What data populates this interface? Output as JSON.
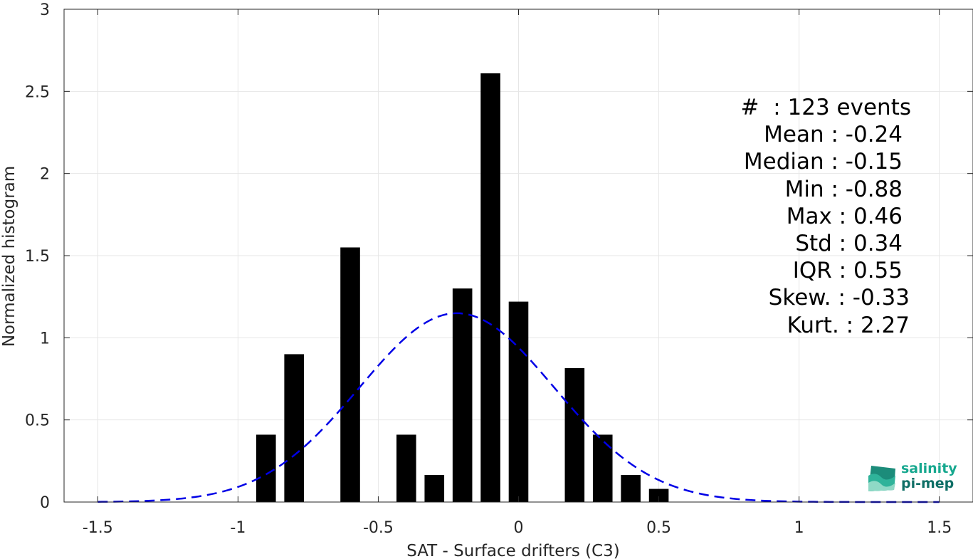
{
  "chart_data": {
    "type": "bar",
    "xlabel": "SAT - Surface drifters (C3)",
    "ylabel": "Normalized histogram",
    "xlim": [
      -1.62,
      1.62
    ],
    "ylim": [
      0,
      3
    ],
    "xticks": [
      -1.5,
      -1,
      -0.5,
      0,
      0.5,
      1,
      1.5
    ],
    "xtick_labels": [
      "-1.5",
      "-1",
      "-0.5",
      "0",
      "0.5",
      "1",
      "1.5"
    ],
    "yticks": [
      0,
      0.5,
      1,
      1.5,
      2,
      2.5,
      3
    ],
    "ytick_labels": [
      "0",
      "0.5",
      "1",
      "1.5",
      "2",
      "2.5",
      "3"
    ],
    "grid": true,
    "bar_width": 0.07,
    "bars": [
      {
        "x": -0.9,
        "value": 0.41
      },
      {
        "x": -0.8,
        "value": 0.9
      },
      {
        "x": -0.6,
        "value": 1.55
      },
      {
        "x": -0.4,
        "value": 0.41
      },
      {
        "x": -0.3,
        "value": 0.165
      },
      {
        "x": -0.2,
        "value": 1.3
      },
      {
        "x": -0.1,
        "value": 2.61
      },
      {
        "x": 0.0,
        "value": 1.22
      },
      {
        "x": 0.2,
        "value": 0.815
      },
      {
        "x": 0.3,
        "value": 0.41
      },
      {
        "x": 0.4,
        "value": 0.165
      },
      {
        "x": 0.5,
        "value": 0.08
      }
    ],
    "fit_curve": {
      "type": "normal",
      "mean": -0.22,
      "std": 0.347,
      "style": "dashed",
      "color": "#0000e6"
    },
    "bar_color": "#000000"
  },
  "stats": {
    "count": "#  : 123 events",
    "mean": "Mean : -0.24",
    "median": "Median : -0.15",
    "min": "Min : -0.88",
    "max": "Max : 0.46",
    "std": "Std : 0.34",
    "iqr": "IQR : 0.55",
    "skew": "Skew. : -0.33",
    "kurt": "Kurt. : 2.27"
  },
  "logo": {
    "line1": "salinity",
    "line2": "pi-mep"
  }
}
